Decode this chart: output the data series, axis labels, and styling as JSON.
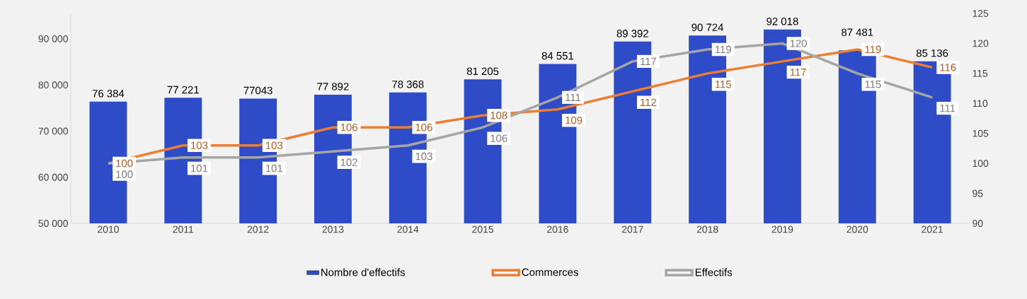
{
  "chart_data": {
    "type": "bar",
    "categories": [
      "2010",
      "2011",
      "2012",
      "2013",
      "2014",
      "2015",
      "2016",
      "2017",
      "2018",
      "2019",
      "2020",
      "2021"
    ],
    "series": [
      {
        "name": "Nombre d'effectifs",
        "type": "bar",
        "color": "#2e4bc8",
        "values": [
          76384,
          77221,
          77043,
          77892,
          78368,
          81205,
          84551,
          89392,
          90724,
          92018,
          87481,
          85136
        ],
        "value_labels": [
          "76 384",
          "77 221",
          "77043",
          "77 892",
          "78 368",
          "81 205",
          "84 551",
          "89 392",
          "90 724",
          "92 018",
          "87 481",
          "85 136"
        ]
      },
      {
        "name": "Commerces",
        "type": "line",
        "axis": "y2",
        "color": "#ed7d31",
        "values": [
          100,
          103,
          103,
          106,
          106,
          108,
          109,
          112,
          115,
          117,
          119,
          116
        ],
        "value_labels": [
          "100",
          "103",
          "103",
          "106",
          "106",
          "108",
          "109",
          "112",
          "115",
          "117",
          "119",
          "116"
        ]
      },
      {
        "name": "Effectifs",
        "type": "line",
        "axis": "y2",
        "color": "#a5a5a5",
        "values": [
          100,
          101,
          101,
          102,
          103,
          106,
          111,
          117,
          119,
          120,
          115,
          111
        ],
        "value_labels": [
          "100",
          "101",
          "101",
          "102",
          "103",
          "106",
          "111",
          "117",
          "119",
          "120",
          "115",
          "111"
        ]
      }
    ],
    "ylim": [
      50000,
      95500
    ],
    "yticks": [
      {
        "value": 50000,
        "label": "50 000"
      },
      {
        "value": 60000,
        "label": "60 000"
      },
      {
        "value": 70000,
        "label": "70 000"
      },
      {
        "value": 80000,
        "label": "80 000"
      },
      {
        "value": 90000,
        "label": "90 000"
      }
    ],
    "y2lim": [
      90,
      125
    ],
    "y2ticks": [
      90,
      95,
      100,
      105,
      110,
      115,
      120,
      125
    ],
    "legend": "bottom"
  }
}
